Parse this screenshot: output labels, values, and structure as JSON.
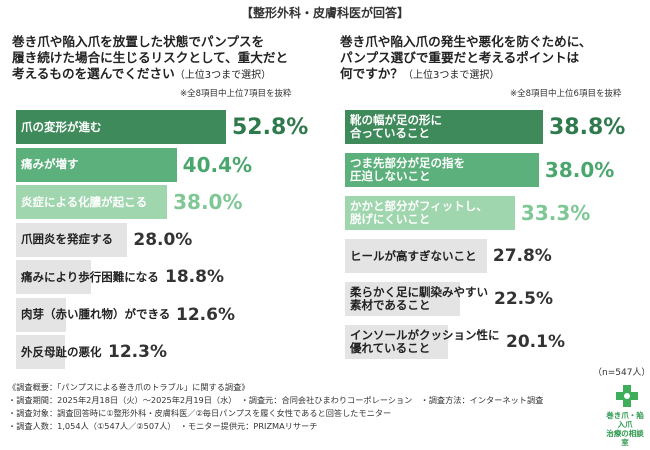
{
  "header": {
    "title": "【整形外科・皮膚科医が回答】"
  },
  "panels": [
    {
      "question": "巻き爪や陥入爪を放置した状態でパンプスを\n履き続けた場合に生じるリスクとして、重大だと\n考えるものを選んでください",
      "question_sub": "（上位3つまで選択）",
      "note": "※全8項目中上位7項目を抜粋"
    },
    {
      "question": "巻き爪や陥入爪の発生や悪化を防ぐために、\nパンプス選びで重要だと考えるポイントは\n何ですか？",
      "question_sub": "（上位3つまで選択）",
      "note": "※全8項目中上位6項目を抜粋"
    }
  ],
  "chart_data": [
    {
      "type": "bar",
      "orientation": "horizontal",
      "categories": [
        "爪の変形が進む",
        "痛みが増す",
        "炎症による化膿が起こる",
        "爪囲炎を発症する",
        "痛みにより歩行困難になる",
        "肉芽（赤い腫れ物）ができる",
        "外反母趾の悪化"
      ],
      "values": [
        52.8,
        40.4,
        38.0,
        28.0,
        18.8,
        12.6,
        12.3
      ],
      "value_labels": [
        "52.8%",
        "40.4%",
        "38.0%",
        "28.0%",
        "18.8%",
        "12.6%",
        "12.3%"
      ],
      "unit": "%",
      "xlim": [
        0,
        60
      ]
    },
    {
      "type": "bar",
      "orientation": "horizontal",
      "categories": [
        "靴の幅が足の形に\n合っていること",
        "つま先部分が足の指を\n圧迫しないこと",
        "かかと部分がフィットし、\n脱げにくいこと",
        "ヒールが高すぎないこと",
        "柔らかく足に馴染みやすい\n素材であること",
        "インソールがクッション性に\n優れていること"
      ],
      "values": [
        38.8,
        38.0,
        33.3,
        27.8,
        22.5,
        20.1
      ],
      "value_labels": [
        "38.8%",
        "38.0%",
        "33.3%",
        "27.8%",
        "22.5%",
        "20.1%"
      ],
      "unit": "%",
      "xlim": [
        0,
        45
      ]
    }
  ],
  "colors": {
    "rank1": "#3f8a5b",
    "rank2": "#5cb07b",
    "rank3": "#9fd6ae",
    "rest": "#e4e4e4",
    "value_rank1": "#2f7a4c",
    "value_rank2": "#4aa66c",
    "value_rank3": "#7fc896",
    "value_rest": "#333333"
  },
  "n_label": "（n=547人）",
  "footer": [
    "《調査概要：「パンプスによる巻き爪のトラブル」に関する調査》",
    "・調査期間：2025年2月18日（火）〜2025年2月19日（水）　・調査元：合同会社ひまわりコーポレーション　・調査方法：インターネット調査",
    "・調査対象：調査回答時に①整形外科・皮膚科医／②毎日パンプスを履く女性であると回答したモニター",
    "・調査人数：1,054人（①547人／②507人）　・モニター提供元：PRIZMAリサーチ"
  ],
  "logo": {
    "text": "巻き爪・陥入爪\n治療の相談室"
  }
}
